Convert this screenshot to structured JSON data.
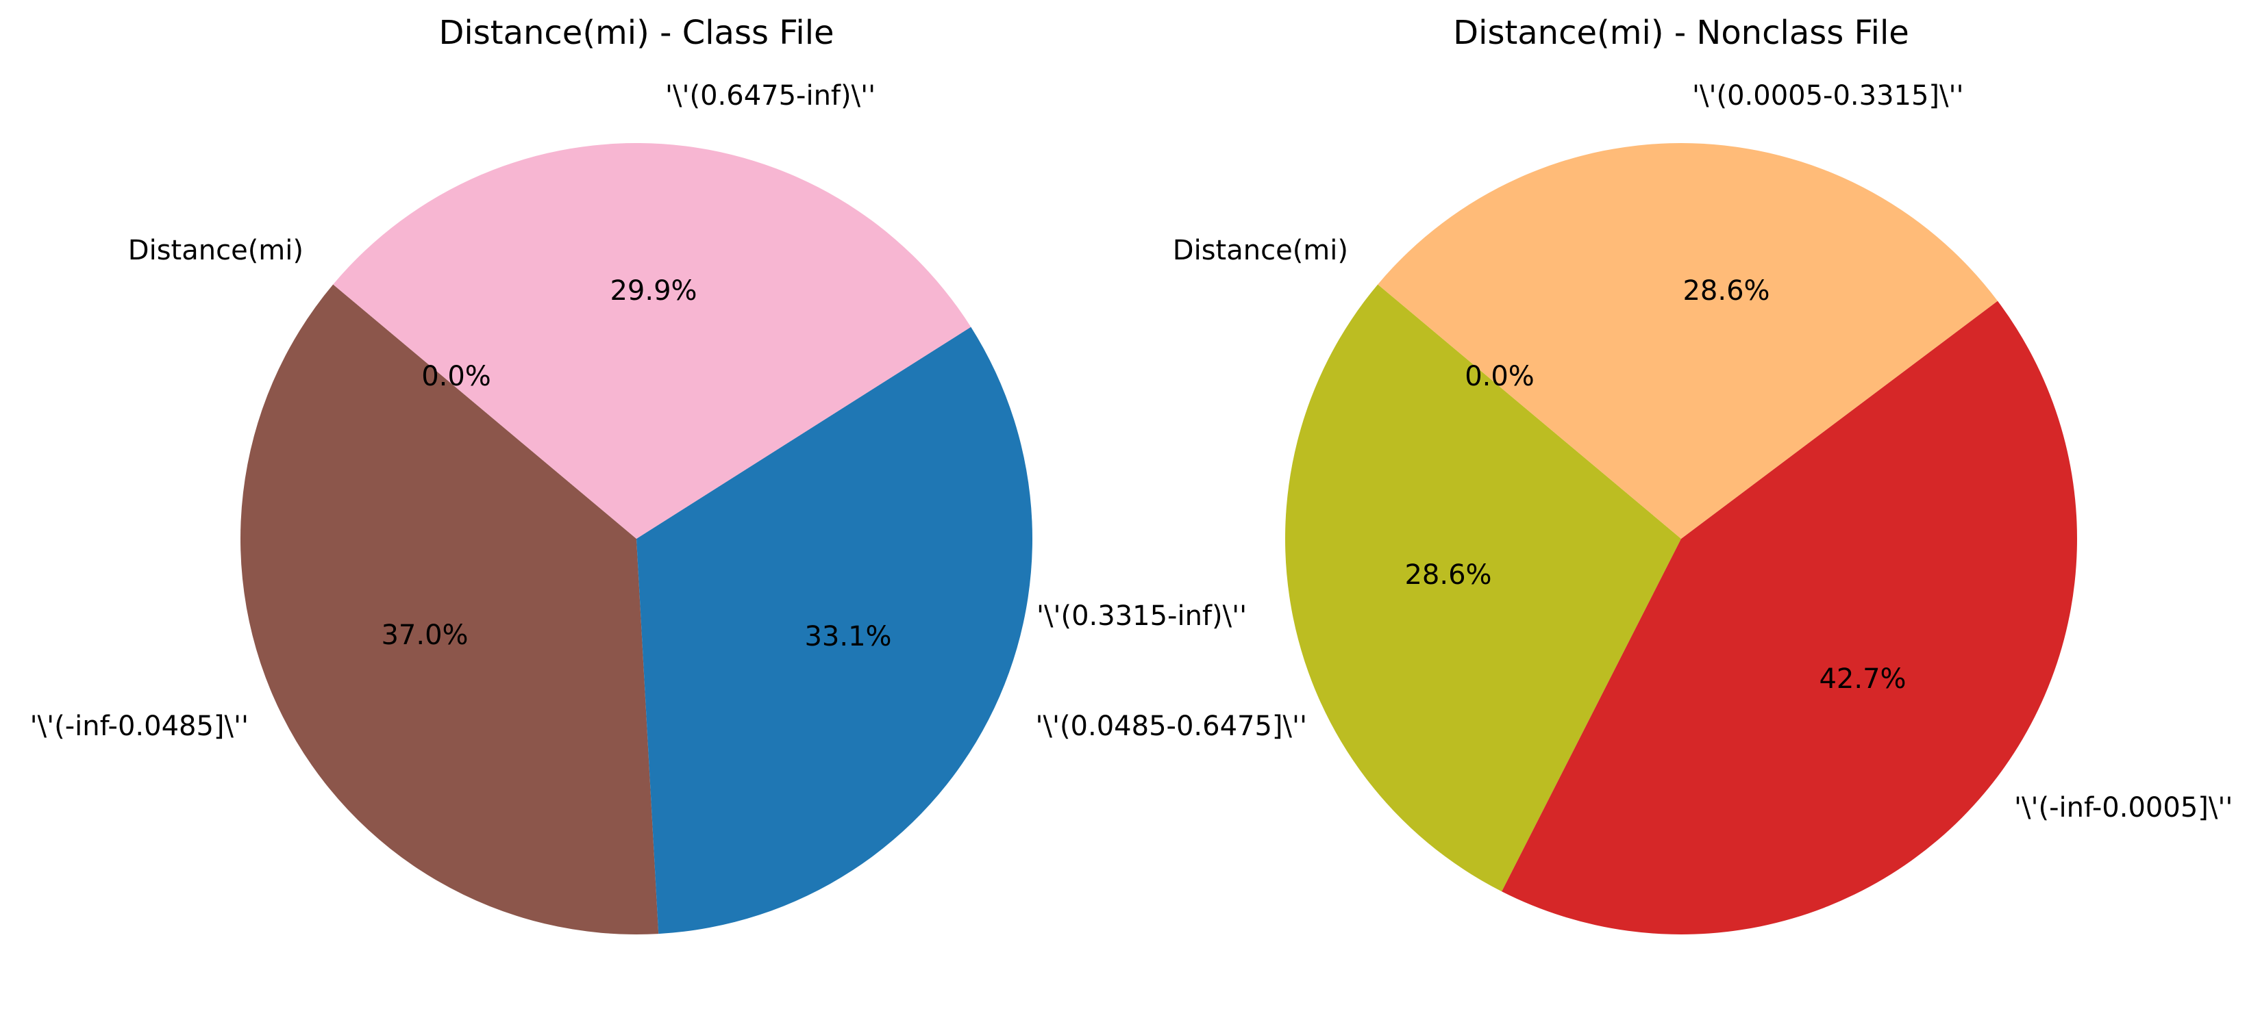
{
  "chart_data": [
    {
      "type": "pie",
      "title": "Distance(mi) - Class File",
      "slices": [
        {
          "label": "Distance(mi)",
          "value": 0.0,
          "pct_label": "0.0%",
          "color": "#8c564b"
        },
        {
          "label": "'\\'(-inf-0.0485]\\''",
          "value": 37.0,
          "pct_label": "37.0%",
          "color": "#8c564b"
        },
        {
          "label": "'\\'(0.3315-inf)\\''",
          "value": 33.1,
          "pct_label": "33.1%",
          "color": "#1f77b4"
        },
        {
          "label": "'\\'(0.6475-inf)\\''",
          "value": 29.9,
          "pct_label": "29.9%",
          "color": "#f7b6d2"
        }
      ]
    },
    {
      "type": "pie",
      "title": "Distance(mi) - Nonclass File",
      "slices": [
        {
          "label": "Distance(mi)",
          "value": 0.0,
          "pct_label": "0.0%",
          "color": "#bcbd22"
        },
        {
          "label": "'\\'(0.0485-0.6475]\\''",
          "value": 28.6,
          "pct_label": "28.6%",
          "color": "#bcbd22"
        },
        {
          "label": "'\\'(-inf-0.0005]\\''",
          "value": 42.7,
          "pct_label": "42.7%",
          "color": "#d62728"
        },
        {
          "label": "'\\'(0.0005-0.3315]\\''",
          "value": 28.6,
          "pct_label": "28.6%",
          "color": "#ffbb78"
        }
      ]
    }
  ]
}
